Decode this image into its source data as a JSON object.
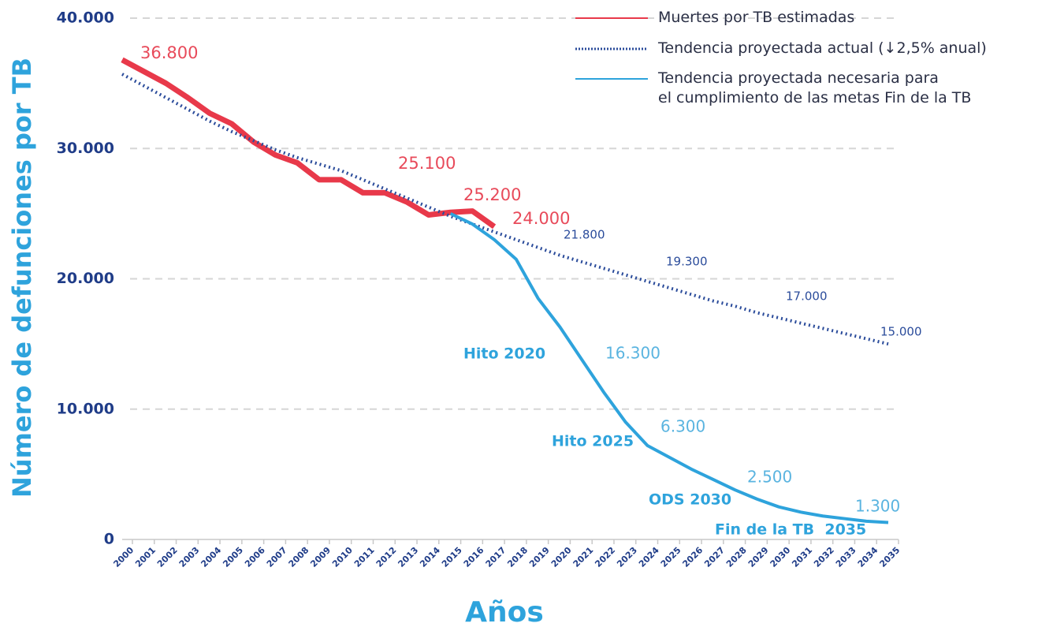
{
  "chart_data": {
    "type": "line",
    "xlabel": "Años",
    "ylabel": "Número de defunciones por TB",
    "categories": [
      "2000",
      "2001",
      "2002",
      "2003",
      "2004",
      "2005",
      "2006",
      "2007",
      "2008",
      "2009",
      "2010",
      "2011",
      "2012",
      "2013",
      "2014",
      "2015",
      "2016",
      "2017",
      "2018",
      "2019",
      "2020",
      "2021",
      "2022",
      "2023",
      "2024",
      "2025",
      "2026",
      "2027",
      "2028",
      "2029",
      "2030",
      "2031",
      "2032",
      "2033",
      "2034",
      "2035"
    ],
    "ylim": [
      0,
      40000
    ],
    "yticks": [
      0,
      {
        "value": 10000,
        "label": "10.000"
      },
      {
        "value": 20000,
        "label": "20.000"
      },
      {
        "value": 30000,
        "label": "30.000"
      },
      {
        "value": 40000,
        "label": "40.000"
      }
    ],
    "grid": true,
    "series": [
      {
        "name": "Muertes por TB estimadas",
        "color": "#e8394a",
        "style": "solid",
        "values": [
          36800,
          35900,
          35000,
          33900,
          32700,
          31900,
          30500,
          29500,
          28900,
          27600,
          27600,
          26600,
          26600,
          25900,
          24900,
          25100,
          25200,
          24000,
          null,
          null,
          null,
          null,
          null,
          null,
          null,
          null,
          null,
          null,
          null,
          null,
          null,
          null,
          null,
          null,
          null,
          null
        ],
        "value_labels": [
          "36.800",
          null,
          null,
          null,
          null,
          null,
          null,
          null,
          null,
          null,
          null,
          null,
          null,
          null,
          null,
          "25.100",
          "25.200",
          "24.000",
          null,
          null,
          null,
          null,
          null,
          null,
          null,
          null,
          null,
          null,
          null,
          null,
          null,
          null,
          null,
          null,
          null,
          null
        ]
      },
      {
        "name": "Tendencia proyectada actual (↓2,5% anual)",
        "color": "#2b4c9b",
        "style": "dotted",
        "values": [
          35700,
          34800,
          33900,
          33000,
          32100,
          31300,
          30600,
          29900,
          29300,
          28800,
          28300,
          27600,
          26900,
          26200,
          25500,
          24800,
          24200,
          23600,
          23000,
          22400,
          21800,
          21300,
          20800,
          20300,
          19800,
          19300,
          18800,
          18300,
          17900,
          17400,
          17000,
          16600,
          16200,
          15800,
          15400,
          15000
        ],
        "value_labels": [
          null,
          null,
          null,
          null,
          null,
          null,
          null,
          null,
          null,
          null,
          null,
          null,
          null,
          null,
          null,
          null,
          null,
          null,
          null,
          null,
          "21.800",
          null,
          null,
          null,
          null,
          "19.300",
          null,
          null,
          null,
          null,
          "17.000",
          null,
          null,
          null,
          null,
          "15.000"
        ]
      },
      {
        "name": "Tendencia proyectada necesaria para\nel cumplimiento de las metas Fin de la TB",
        "color": "#2ea3dc",
        "style": "solid",
        "values": [
          null,
          null,
          null,
          null,
          null,
          null,
          null,
          null,
          null,
          null,
          null,
          null,
          null,
          null,
          null,
          25000,
          24200,
          23000,
          21500,
          18500,
          16300,
          13800,
          11300,
          9000,
          7200,
          6300,
          5400,
          4600,
          3800,
          3100,
          2500,
          2100,
          1800,
          1600,
          1400,
          1300
        ],
        "value_labels": [
          null,
          null,
          null,
          null,
          null,
          null,
          null,
          null,
          null,
          null,
          null,
          null,
          null,
          null,
          null,
          null,
          null,
          null,
          null,
          null,
          "16.300",
          null,
          null,
          null,
          null,
          "6.300",
          null,
          null,
          null,
          null,
          "2.500",
          null,
          null,
          null,
          null,
          "1.300"
        ]
      }
    ],
    "annotations": [
      "Hito 2020",
      "Hito 2025",
      "ODS 2030",
      "Fin de la TB  2035"
    ]
  }
}
